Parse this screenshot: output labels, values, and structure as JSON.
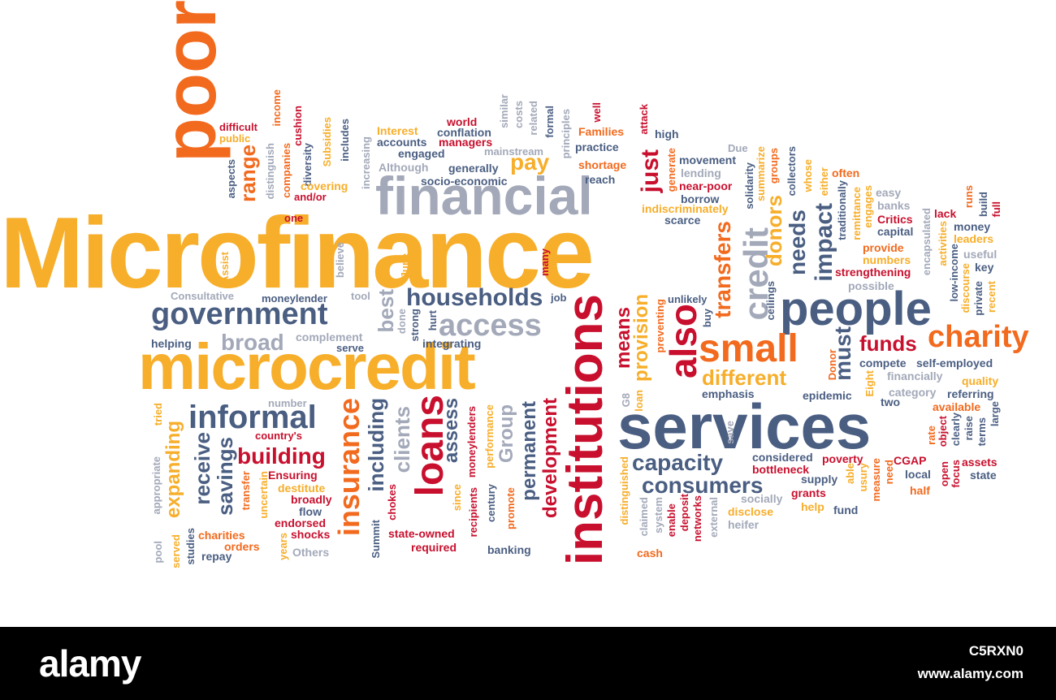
{
  "colors": {
    "orange": "#f26a1e",
    "yellow": "#f7ae2a",
    "red": "#c8102e",
    "blue": "#4a5e82",
    "gray": "#a3a9b9",
    "light_gray": "#c5c9d3",
    "footer_bg": "#000000"
  },
  "words": [
    {
      "text": "Microfinance",
      "color": "ye"
    },
    {
      "text": "poor",
      "color": "or"
    },
    {
      "text": "financial",
      "color": "gr"
    },
    {
      "text": "microcredit",
      "color": "ye"
    },
    {
      "text": "services",
      "color": "bl"
    },
    {
      "text": "institutions",
      "color": "rd"
    },
    {
      "text": "people",
      "color": "bl"
    },
    {
      "text": "government",
      "color": "bl"
    },
    {
      "text": "small",
      "color": "or"
    },
    {
      "text": "charity",
      "color": "or"
    },
    {
      "text": "access",
      "color": "gr"
    },
    {
      "text": "households",
      "color": "bl"
    },
    {
      "text": "informal",
      "color": "bl"
    },
    {
      "text": "loans",
      "color": "rd"
    },
    {
      "text": "insurance",
      "color": "or"
    },
    {
      "text": "broad",
      "color": "gr"
    },
    {
      "text": "also",
      "color": "rd"
    },
    {
      "text": "credit",
      "color": "gr"
    },
    {
      "text": "capacity",
      "color": "bl"
    },
    {
      "text": "consumers",
      "color": "bl"
    },
    {
      "text": "building",
      "color": "rd"
    },
    {
      "text": "different",
      "color": "ye"
    },
    {
      "text": "funds",
      "color": "rd"
    },
    {
      "text": "transfers",
      "color": "or"
    },
    {
      "text": "impact",
      "color": "bl"
    },
    {
      "text": "needs",
      "color": "bl"
    },
    {
      "text": "donors",
      "color": "ye"
    },
    {
      "text": "must",
      "color": "bl"
    },
    {
      "text": "just",
      "color": "rd"
    },
    {
      "text": "pay",
      "color": "ye"
    },
    {
      "text": "means",
      "color": "rd"
    },
    {
      "text": "provision",
      "color": "ye"
    },
    {
      "text": "best",
      "color": "gr"
    },
    {
      "text": "range",
      "color": "or"
    },
    {
      "text": "receive",
      "color": "bl"
    },
    {
      "text": "savings",
      "color": "bl"
    },
    {
      "text": "expanding",
      "color": "ye"
    },
    {
      "text": "including",
      "color": "bl"
    },
    {
      "text": "clients",
      "color": "gr"
    },
    {
      "text": "assess",
      "color": "bl"
    },
    {
      "text": "Group",
      "color": "gr"
    },
    {
      "text": "permanent",
      "color": "bl"
    },
    {
      "text": "development",
      "color": "rd"
    },
    {
      "text": "moneylender",
      "color": "bl"
    },
    {
      "text": "integrating",
      "color": "bl"
    },
    {
      "text": "complement",
      "color": "gr"
    },
    {
      "text": "helping",
      "color": "bl"
    },
    {
      "text": "serve",
      "color": "bl"
    },
    {
      "text": "Consultative",
      "color": "gr"
    },
    {
      "text": "tool",
      "color": "gr"
    },
    {
      "text": "job",
      "color": "bl"
    },
    {
      "text": "unlikely",
      "color": "bl"
    },
    {
      "text": "difficult",
      "color": "rd"
    },
    {
      "text": "public",
      "color": "ye"
    },
    {
      "text": "income",
      "color": "or"
    },
    {
      "text": "aspects",
      "color": "bl"
    },
    {
      "text": "distinguish",
      "color": "gr"
    },
    {
      "text": "companies",
      "color": "or"
    },
    {
      "text": "cushion",
      "color": "rd"
    },
    {
      "text": "diversity",
      "color": "bl"
    },
    {
      "text": "Subsidies",
      "color": "ye"
    },
    {
      "text": "includes",
      "color": "bl"
    },
    {
      "text": "covering",
      "color": "ye"
    },
    {
      "text": "and/or",
      "color": "rd"
    },
    {
      "text": "one",
      "color": "rd"
    },
    {
      "text": "increasing",
      "color": "gr"
    },
    {
      "text": "Interest",
      "color": "ye"
    },
    {
      "text": "accounts",
      "color": "bl"
    },
    {
      "text": "engaged",
      "color": "bl"
    },
    {
      "text": "Although",
      "color": "gr"
    },
    {
      "text": "world",
      "color": "rd"
    },
    {
      "text": "conflation",
      "color": "bl"
    },
    {
      "text": "managers",
      "color": "rd"
    },
    {
      "text": "generally",
      "color": "bl"
    },
    {
      "text": "socio-economic",
      "color": "bl"
    },
    {
      "text": "similar",
      "color": "gr"
    },
    {
      "text": "costs",
      "color": "gr"
    },
    {
      "text": "related",
      "color": "gr"
    },
    {
      "text": "mainstream",
      "color": "gr"
    },
    {
      "text": "formal",
      "color": "bl"
    },
    {
      "text": "principles",
      "color": "gr"
    },
    {
      "text": "well",
      "color": "rd"
    },
    {
      "text": "Families",
      "color": "or"
    },
    {
      "text": "practice",
      "color": "bl"
    },
    {
      "text": "shortage",
      "color": "or"
    },
    {
      "text": "reach",
      "color": "bl"
    },
    {
      "text": "attack",
      "color": "rd"
    },
    {
      "text": "high",
      "color": "bl"
    },
    {
      "text": "generate",
      "color": "or"
    },
    {
      "text": "movement",
      "color": "bl"
    },
    {
      "text": "lending",
      "color": "gr"
    },
    {
      "text": "Due",
      "color": "gr"
    },
    {
      "text": "summarize",
      "color": "ye"
    },
    {
      "text": "groups",
      "color": "or"
    },
    {
      "text": "collectors",
      "color": "bl"
    },
    {
      "text": "borrow",
      "color": "bl"
    },
    {
      "text": "near-poor",
      "color": "rd"
    },
    {
      "text": "indiscriminately",
      "color": "ye"
    },
    {
      "text": "scarce",
      "color": "bl"
    },
    {
      "text": "solidarity",
      "color": "bl"
    },
    {
      "text": "ceilings",
      "color": "bl"
    },
    {
      "text": "whose",
      "color": "ye"
    },
    {
      "text": "either",
      "color": "ye"
    },
    {
      "text": "often",
      "color": "or"
    },
    {
      "text": "traditionally",
      "color": "bl"
    },
    {
      "text": "remittance",
      "color": "ye"
    },
    {
      "text": "engages",
      "color": "ye"
    },
    {
      "text": "easy",
      "color": "gr"
    },
    {
      "text": "banks",
      "color": "gr"
    },
    {
      "text": "Critics",
      "color": "rd"
    },
    {
      "text": "capital",
      "color": "bl"
    },
    {
      "text": "lack",
      "color": "rd"
    },
    {
      "text": "runs",
      "color": "or"
    },
    {
      "text": "build",
      "color": "bl"
    },
    {
      "text": "full",
      "color": "rd"
    },
    {
      "text": "money",
      "color": "bl"
    },
    {
      "text": "leaders",
      "color": "ye"
    },
    {
      "text": "activities",
      "color": "ye"
    },
    {
      "text": "provide",
      "color": "or"
    },
    {
      "text": "numbers",
      "color": "ye"
    },
    {
      "text": "encapsulated",
      "color": "gr"
    },
    {
      "text": "strengthening",
      "color": "rd"
    },
    {
      "text": "possible",
      "color": "gr"
    },
    {
      "text": "low-income",
      "color": "bl"
    },
    {
      "text": "useful",
      "color": "gr"
    },
    {
      "text": "key",
      "color": "bl"
    },
    {
      "text": "discourse",
      "color": "ye"
    },
    {
      "text": "private",
      "color": "bl"
    },
    {
      "text": "recent",
      "color": "ye"
    },
    {
      "text": "buy",
      "color": "bl"
    },
    {
      "text": "preventing",
      "color": "or"
    },
    {
      "text": "compete",
      "color": "bl"
    },
    {
      "text": "self-employed",
      "color": "bl"
    },
    {
      "text": "financially",
      "color": "gr"
    },
    {
      "text": "quality",
      "color": "ye"
    },
    {
      "text": "category",
      "color": "gr"
    },
    {
      "text": "referring",
      "color": "bl"
    },
    {
      "text": "emphasis",
      "color": "bl"
    },
    {
      "text": "epidemic",
      "color": "bl"
    },
    {
      "text": "two",
      "color": "bl"
    },
    {
      "text": "available",
      "color": "or"
    },
    {
      "text": "Donor",
      "color": "or"
    },
    {
      "text": "Eight",
      "color": "ye"
    },
    {
      "text": "loan",
      "color": "ye"
    },
    {
      "text": "G8",
      "color": "gr"
    },
    {
      "text": "rate",
      "color": "or"
    },
    {
      "text": "object",
      "color": "rd"
    },
    {
      "text": "clearly",
      "color": "bl"
    },
    {
      "text": "raise",
      "color": "bl"
    },
    {
      "text": "terms",
      "color": "bl"
    },
    {
      "text": "large",
      "color": "bl"
    },
    {
      "text": "considered",
      "color": "bl"
    },
    {
      "text": "poverty",
      "color": "rd"
    },
    {
      "text": "CGAP",
      "color": "rd"
    },
    {
      "text": "assets",
      "color": "rd"
    },
    {
      "text": "bottleneck",
      "color": "rd"
    },
    {
      "text": "supply",
      "color": "bl"
    },
    {
      "text": "able",
      "color": "ye"
    },
    {
      "text": "usury",
      "color": "ye"
    },
    {
      "text": "measure",
      "color": "or"
    },
    {
      "text": "need",
      "color": "or"
    },
    {
      "text": "local",
      "color": "bl"
    },
    {
      "text": "open",
      "color": "rd"
    },
    {
      "text": "focus",
      "color": "rd"
    },
    {
      "text": "state",
      "color": "bl"
    },
    {
      "text": "half",
      "color": "or"
    },
    {
      "text": "grants",
      "color": "rd"
    },
    {
      "text": "socially",
      "color": "gr"
    },
    {
      "text": "disclose",
      "color": "ye"
    },
    {
      "text": "help",
      "color": "ye"
    },
    {
      "text": "fund",
      "color": "bl"
    },
    {
      "text": "heifer",
      "color": "gr"
    },
    {
      "text": "save",
      "color": "gr"
    },
    {
      "text": "claimed",
      "color": "gr"
    },
    {
      "text": "system",
      "color": "gr"
    },
    {
      "text": "enable",
      "color": "rd"
    },
    {
      "text": "deposit",
      "color": "rd"
    },
    {
      "text": "networks",
      "color": "rd"
    },
    {
      "text": "external",
      "color": "gr"
    },
    {
      "text": "distinguished",
      "color": "ye"
    },
    {
      "text": "cash",
      "color": "or"
    },
    {
      "text": "century",
      "color": "bl"
    },
    {
      "text": "promote",
      "color": "or"
    },
    {
      "text": "banking",
      "color": "bl"
    },
    {
      "text": "recipients",
      "color": "rd"
    },
    {
      "text": "moneylenders",
      "color": "rd"
    },
    {
      "text": "performance",
      "color": "ye"
    },
    {
      "text": "since",
      "color": "ye"
    },
    {
      "text": "state-owned",
      "color": "rd"
    },
    {
      "text": "required",
      "color": "rd"
    },
    {
      "text": "Summit",
      "color": "bl"
    },
    {
      "text": "chokes",
      "color": "rd"
    },
    {
      "text": "country's",
      "color": "rd"
    },
    {
      "text": "Ensuring",
      "color": "rd"
    },
    {
      "text": "destitute",
      "color": "ye"
    },
    {
      "text": "broadly",
      "color": "rd"
    },
    {
      "text": "endorsed",
      "color": "rd"
    },
    {
      "text": "flow",
      "color": "bl"
    },
    {
      "text": "shocks",
      "color": "rd"
    },
    {
      "text": "Others",
      "color": "gr"
    },
    {
      "text": "years",
      "color": "ye"
    },
    {
      "text": "uncertain",
      "color": "ye"
    },
    {
      "text": "transfer",
      "color": "or"
    },
    {
      "text": "charities",
      "color": "or"
    },
    {
      "text": "orders",
      "color": "or"
    },
    {
      "text": "repay",
      "color": "bl"
    },
    {
      "text": "studies",
      "color": "bl"
    },
    {
      "text": "served",
      "color": "ye"
    },
    {
      "text": "pool",
      "color": "gr"
    },
    {
      "text": "appropriate",
      "color": "gr"
    },
    {
      "text": "tried",
      "color": "ye"
    },
    {
      "text": "number",
      "color": "gr"
    },
    {
      "text": "Assist",
      "color": "ye"
    },
    {
      "text": "believe",
      "color": "gr"
    },
    {
      "text": "June",
      "color": "ye"
    },
    {
      "text": "done",
      "color": "gr"
    },
    {
      "text": "strong",
      "color": "bl"
    },
    {
      "text": "hurt",
      "color": "bl"
    },
    {
      "text": "many",
      "color": "rd"
    }
  ],
  "footer": {
    "logo": "alamy",
    "code": "C5RXN0",
    "site": "www.alamy.com"
  }
}
